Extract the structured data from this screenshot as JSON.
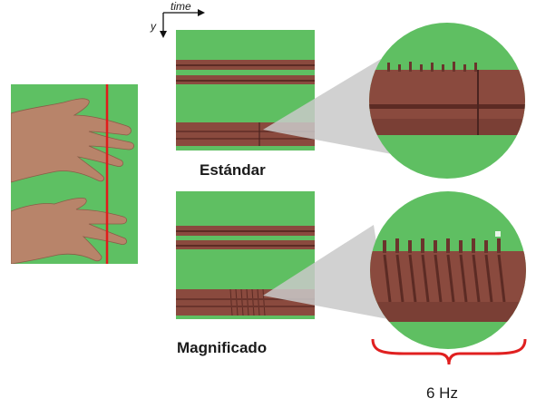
{
  "labels": {
    "axis_time": "time",
    "axis_y": "y",
    "standard": "Estándar",
    "magnified": "Magnificado",
    "frequency": "6 Hz"
  },
  "colors": {
    "green": "#5fbf62",
    "band": "#8a4a3e",
    "band_dark": "#5c2b24",
    "red_line": "#e21b1b",
    "skin": "#b8856b",
    "brace": "#e02020",
    "cone": "#c9c9c9"
  }
}
